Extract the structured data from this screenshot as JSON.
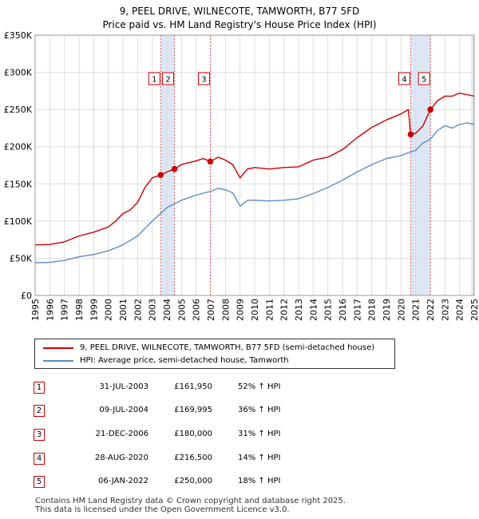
{
  "title_line1": "9, PEEL DRIVE, WILNECOTE, TAMWORTH, B77 5FD",
  "title_line2": "Price paid vs. HM Land Registry's House Price Index (HPI)",
  "colors": {
    "property": "#cc0000",
    "hpi": "#5b8dc9",
    "grid": "#dddddd",
    "shade": "#dde6f4",
    "vline": "#e06060"
  },
  "legend": {
    "property": "9, PEEL DRIVE, WILNECOTE, TAMWORTH, B77 5FD (semi-detached house)",
    "hpi": "HPI: Average price, semi-detached house, Tamworth"
  },
  "transactions": [
    {
      "num": "1",
      "date": "31-JUL-2003",
      "price": "£161,950",
      "hpi": "52% ↑ HPI"
    },
    {
      "num": "2",
      "date": "09-JUL-2004",
      "price": "£169,995",
      "hpi": "36% ↑ HPI"
    },
    {
      "num": "3",
      "date": "21-DEC-2006",
      "price": "£180,000",
      "hpi": "31% ↑ HPI"
    },
    {
      "num": "4",
      "date": "28-AUG-2020",
      "price": "£216,500",
      "hpi": "14% ↑ HPI"
    },
    {
      "num": "5",
      "date": "06-JAN-2022",
      "price": "£250,000",
      "hpi": "18% ↑ HPI"
    }
  ],
  "footer_line1": "Contains HM Land Registry data © Crown copyright and database right 2025.",
  "footer_line2": "This data is licensed under the Open Government Licence v3.0.",
  "chart_data": {
    "type": "line",
    "title": "9, PEEL DRIVE, WILNECOTE, TAMWORTH, B77 5FD — Price paid vs. HM Land Registry's House Price Index (HPI)",
    "xlabel": "",
    "ylabel": "",
    "xlim": [
      1995,
      2025
    ],
    "ylim": [
      0,
      350000
    ],
    "x_ticks": [
      "1995",
      "1996",
      "1997",
      "1998",
      "1999",
      "2000",
      "2001",
      "2002",
      "2003",
      "2004",
      "2005",
      "2006",
      "2007",
      "2008",
      "2009",
      "2010",
      "2011",
      "2012",
      "2013",
      "2014",
      "2015",
      "2016",
      "2017",
      "2018",
      "2019",
      "2020",
      "2021",
      "2022",
      "2023",
      "2024",
      "2025"
    ],
    "y_ticks": [
      {
        "value": 0,
        "label": "£0"
      },
      {
        "value": 50000,
        "label": "£50K"
      },
      {
        "value": 100000,
        "label": "£100K"
      },
      {
        "value": 150000,
        "label": "£150K"
      },
      {
        "value": 200000,
        "label": "£200K"
      },
      {
        "value": 250000,
        "label": "£250K"
      },
      {
        "value": 300000,
        "label": "£300K"
      },
      {
        "value": 350000,
        "label": "£350K"
      }
    ],
    "shaded_ranges": [
      [
        2003.58,
        2004.52
      ],
      [
        2020.66,
        2022.01
      ],
      [
        2024.8,
        2025
      ]
    ],
    "series": [
      {
        "name": "9, PEEL DRIVE, WILNECOTE, TAMWORTH, B77 5FD (semi-detached house)",
        "x": [
          1995,
          1996,
          1997,
          1998,
          1999,
          2000,
          2000.5,
          2001,
          2001.5,
          2002,
          2002.5,
          2003,
          2003.58,
          2004,
          2004.52,
          2005,
          2006,
          2006.5,
          2006.97,
          2007.5,
          2008,
          2008.5,
          2009,
          2009.5,
          2010,
          2011,
          2012,
          2013,
          2014,
          2015,
          2016,
          2017,
          2018,
          2019,
          2020,
          2020.5,
          2020.66,
          2021,
          2021.5,
          2022.01,
          2022.5,
          2023,
          2023.5,
          2024,
          2024.5,
          2025
        ],
        "y": [
          68000,
          68500,
          72000,
          80000,
          85000,
          92000,
          100000,
          110000,
          115000,
          125000,
          145000,
          158000,
          161950,
          166000,
          169995,
          176000,
          181000,
          184000,
          180000,
          186000,
          182000,
          176000,
          158000,
          170000,
          172000,
          170000,
          172000,
          173000,
          182000,
          186000,
          196000,
          212000,
          226000,
          236000,
          244000,
          250000,
          216500,
          218000,
          228000,
          250000,
          262000,
          268000,
          268000,
          272000,
          270000,
          268000
        ]
      },
      {
        "name": "HPI: Average price, semi-detached house, Tamworth",
        "x": [
          1995,
          1996,
          1997,
          1998,
          1999,
          2000,
          2001,
          2002,
          2003,
          2004,
          2005,
          2006,
          2007,
          2007.5,
          2008,
          2008.5,
          2009,
          2009.5,
          2010,
          2011,
          2012,
          2013,
          2014,
          2015,
          2016,
          2017,
          2018,
          2019,
          2020,
          2020.5,
          2021,
          2021.5,
          2022,
          2022.5,
          2023,
          2023.5,
          2024,
          2024.5,
          2025
        ],
        "y": [
          44000,
          44500,
          47000,
          52000,
          55000,
          60000,
          68000,
          80000,
          100000,
          118000,
          128000,
          135000,
          140000,
          144000,
          142000,
          138000,
          120000,
          128000,
          128000,
          127000,
          128000,
          130000,
          137000,
          145000,
          155000,
          166000,
          176000,
          184000,
          188000,
          192000,
          195000,
          205000,
          210000,
          222000,
          228000,
          225000,
          230000,
          232000,
          230000
        ]
      }
    ],
    "sale_markers": [
      {
        "num": "1",
        "x": 2003.58,
        "y": 161950
      },
      {
        "num": "2",
        "x": 2004.52,
        "y": 169995
      },
      {
        "num": "3",
        "x": 2006.97,
        "y": 180000
      },
      {
        "num": "4",
        "x": 2020.66,
        "y": 216500
      },
      {
        "num": "5",
        "x": 2022.01,
        "y": 250000
      }
    ]
  }
}
